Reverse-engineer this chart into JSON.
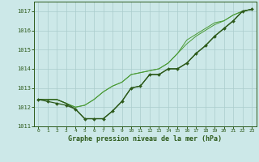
{
  "bg_color": "#cce8e8",
  "grid_color": "#aacccc",
  "line_color_dark": "#2d5a1b",
  "line_color_mid": "#3a7a25",
  "line_color_light": "#4a9a35",
  "title": "Graphe pression niveau de la mer (hPa)",
  "xlim": [
    -0.5,
    23.5
  ],
  "ylim": [
    1011.0,
    1017.5
  ],
  "yticks": [
    1011,
    1012,
    1013,
    1014,
    1015,
    1016,
    1017
  ],
  "xticks": [
    0,
    1,
    2,
    3,
    4,
    5,
    6,
    7,
    8,
    9,
    10,
    11,
    12,
    13,
    14,
    15,
    16,
    17,
    18,
    19,
    20,
    21,
    22,
    23
  ],
  "series_main": [
    1012.4,
    1012.4,
    1012.4,
    1012.2,
    1011.9,
    1011.4,
    1011.4,
    1011.4,
    1011.8,
    1012.3,
    1013.0,
    1013.1,
    1013.7,
    1013.7,
    1014.0,
    1014.0,
    1014.3,
    1014.8,
    1015.2,
    1015.7,
    1016.1,
    1016.5,
    1017.0,
    1017.1
  ],
  "series_upper1": [
    1012.4,
    1012.4,
    1012.4,
    1012.2,
    1012.0,
    1012.1,
    1012.4,
    1012.8,
    1013.1,
    1013.3,
    1013.7,
    1013.8,
    1013.9,
    1014.0,
    1014.3,
    1014.8,
    1015.3,
    1015.7,
    1016.0,
    1016.3,
    1016.5,
    1016.8,
    1017.0,
    1017.1
  ],
  "series_upper2": [
    1012.4,
    1012.4,
    1012.4,
    1012.2,
    1012.0,
    1012.1,
    1012.4,
    1012.8,
    1013.1,
    1013.3,
    1013.7,
    1013.8,
    1013.9,
    1014.0,
    1014.3,
    1014.8,
    1015.5,
    1015.8,
    1016.1,
    1016.4,
    1016.5,
    1016.8,
    1017.0,
    1017.1
  ],
  "series_marker": [
    1012.4,
    1012.3,
    1012.2,
    1012.1,
    1011.9,
    1011.4,
    1011.4,
    1011.4,
    1011.8,
    1012.3,
    1013.0,
    1013.1,
    1013.7,
    1013.7,
    1014.0,
    1014.0,
    1014.3,
    1014.8,
    1015.2,
    1015.7,
    1016.1,
    1016.5,
    1017.0,
    1017.1
  ]
}
